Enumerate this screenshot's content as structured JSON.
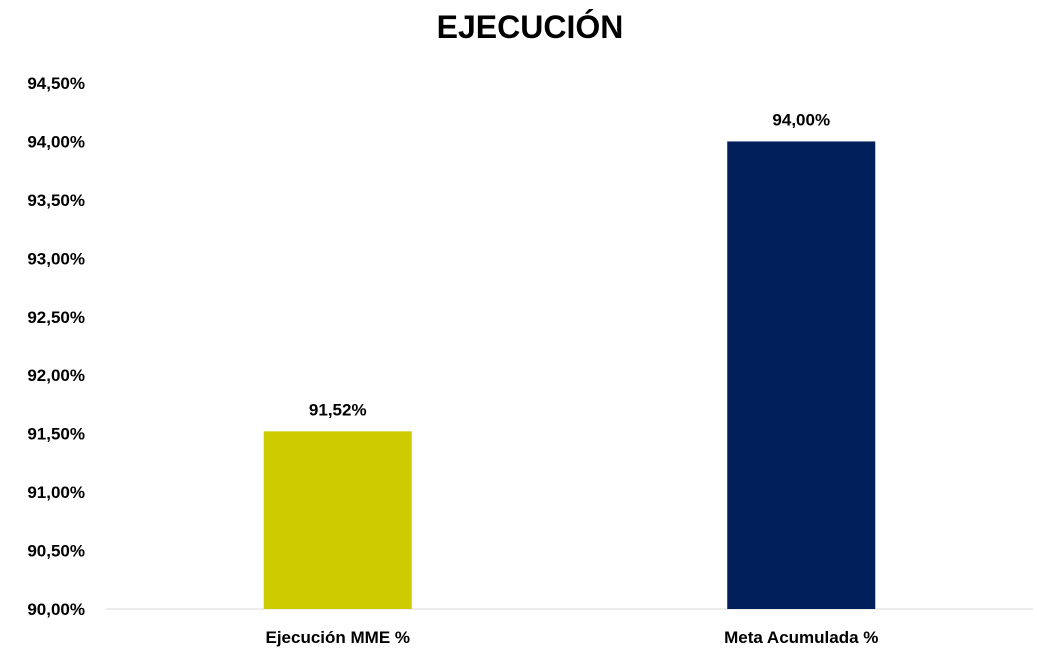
{
  "chart_data": {
    "type": "bar",
    "title": "EJECUCIÓN",
    "xlabel": "",
    "ylabel": "",
    "categories": [
      "Ejecución MME %",
      "Meta Acumulada %"
    ],
    "values": [
      91.52,
      94.0
    ],
    "value_labels": [
      "91,52%",
      "94,00%"
    ],
    "bar_colors": [
      "#cccc00",
      "#001f5b"
    ],
    "ylim": [
      90.0,
      94.5
    ],
    "y_ticks": [
      90.0,
      90.5,
      91.0,
      91.5,
      92.0,
      92.5,
      93.0,
      93.5,
      94.0,
      94.5
    ],
    "y_tick_labels": [
      "90,00%",
      "90,50%",
      "91,00%",
      "91,50%",
      "92,00%",
      "92,50%",
      "93,00%",
      "93,50%",
      "94,00%",
      "94,50%"
    ],
    "grid": false,
    "legend": "none"
  }
}
